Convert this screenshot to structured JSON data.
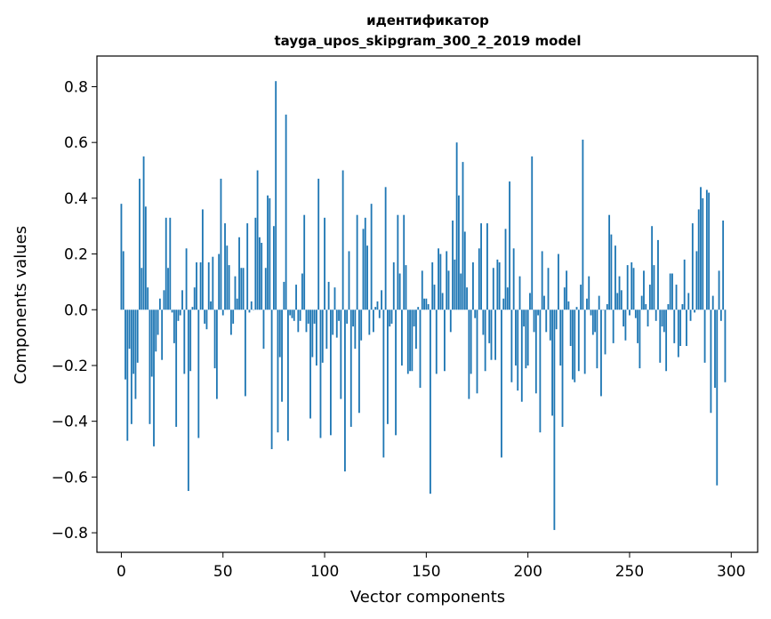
{
  "chart_data": {
    "type": "bar",
    "title": "идентификатор",
    "subtitle": "tayga_upos_skipgram_300_2_2019 model",
    "xlabel": "Vector components",
    "ylabel": "Components values",
    "xlim": [
      -12,
      313
    ],
    "ylim": [
      -0.87,
      0.91
    ],
    "x_ticks": [
      0,
      50,
      100,
      150,
      200,
      250,
      300
    ],
    "x_tick_labels": [
      "0",
      "50",
      "100",
      "150",
      "200",
      "250",
      "300"
    ],
    "y_ticks": [
      -0.8,
      -0.6,
      -0.4,
      -0.2,
      0.0,
      0.2,
      0.4,
      0.6,
      0.8
    ],
    "y_tick_labels": [
      "−0.8",
      "−0.6",
      "−0.4",
      "−0.2",
      "0.0",
      "0.2",
      "0.4",
      "0.6",
      "0.8"
    ],
    "bar_color": "#1f77b4",
    "grid": false,
    "values": [
      0.38,
      0.21,
      -0.25,
      -0.47,
      -0.14,
      -0.41,
      -0.23,
      -0.32,
      -0.19,
      0.47,
      0.15,
      0.55,
      0.37,
      0.08,
      -0.41,
      -0.24,
      -0.49,
      -0.15,
      -0.09,
      0.04,
      -0.18,
      0.07,
      0.33,
      0.15,
      0.33,
      -0.01,
      -0.12,
      -0.42,
      -0.04,
      -0.02,
      0.07,
      -0.23,
      0.22,
      -0.65,
      -0.22,
      0.01,
      0.08,
      0.17,
      -0.46,
      0.17,
      0.36,
      -0.05,
      -0.07,
      0.17,
      0.03,
      0.19,
      -0.21,
      -0.32,
      0.2,
      0.47,
      -0.02,
      0.31,
      0.23,
      0.16,
      -0.09,
      -0.05,
      0.12,
      0.04,
      0.26,
      0.15,
      0.15,
      -0.31,
      0.31,
      -0.01,
      0.03,
      0.0,
      0.33,
      0.5,
      0.26,
      0.24,
      -0.14,
      0.15,
      0.41,
      0.4,
      -0.5,
      0.3,
      0.82,
      -0.44,
      -0.17,
      -0.33,
      0.1,
      0.7,
      -0.47,
      -0.02,
      -0.03,
      -0.04,
      0.09,
      -0.08,
      -0.04,
      0.13,
      0.34,
      -0.08,
      -0.05,
      -0.39,
      -0.17,
      -0.05,
      -0.2,
      0.47,
      -0.46,
      -0.19,
      0.33,
      -0.14,
      0.1,
      -0.45,
      -0.09,
      0.08,
      -0.1,
      -0.04,
      -0.32,
      0.5,
      -0.58,
      -0.05,
      0.21,
      -0.42,
      -0.06,
      -0.14,
      0.34,
      -0.37,
      -0.11,
      0.29,
      0.33,
      0.23,
      -0.09,
      0.38,
      -0.08,
      0.01,
      0.03,
      -0.03,
      0.07,
      -0.53,
      0.44,
      -0.41,
      -0.06,
      -0.05,
      0.17,
      -0.45,
      0.34,
      0.13,
      -0.2,
      0.34,
      0.16,
      -0.23,
      -0.22,
      -0.22,
      -0.06,
      -0.14,
      0.01,
      -0.28,
      0.14,
      0.04,
      0.04,
      0.02,
      -0.66,
      0.17,
      0.09,
      -0.23,
      0.22,
      0.2,
      0.06,
      -0.22,
      0.21,
      0.14,
      -0.08,
      0.32,
      0.18,
      0.6,
      0.41,
      0.13,
      0.53,
      0.28,
      0.08,
      -0.32,
      -0.23,
      0.17,
      -0.03,
      -0.3,
      0.22,
      0.31,
      -0.09,
      -0.22,
      0.31,
      -0.12,
      -0.18,
      0.15,
      -0.18,
      0.18,
      0.17,
      -0.53,
      0.04,
      0.29,
      0.08,
      0.46,
      -0.26,
      0.22,
      -0.2,
      -0.29,
      0.12,
      -0.33,
      -0.06,
      -0.21,
      -0.2,
      0.06,
      0.55,
      -0.08,
      -0.3,
      -0.02,
      -0.44,
      0.21,
      0.05,
      -0.08,
      0.15,
      -0.11,
      -0.38,
      -0.79,
      -0.07,
      0.2,
      -0.2,
      -0.42,
      0.08,
      0.14,
      0.03,
      -0.13,
      -0.25,
      -0.26,
      0.01,
      -0.22,
      0.09,
      0.61,
      -0.23,
      0.04,
      0.12,
      -0.02,
      -0.09,
      -0.08,
      -0.21,
      0.05,
      -0.31,
      0.0,
      -0.16,
      0.02,
      0.34,
      0.27,
      -0.12,
      0.23,
      0.06,
      0.12,
      0.07,
      -0.06,
      -0.11,
      0.16,
      -0.02,
      0.17,
      0.15,
      -0.03,
      -0.12,
      -0.21,
      0.05,
      0.14,
      0.02,
      -0.06,
      0.09,
      0.3,
      0.16,
      -0.04,
      0.25,
      -0.19,
      -0.06,
      -0.08,
      -0.22,
      0.02,
      0.13,
      0.13,
      -0.12,
      0.09,
      -0.17,
      -0.13,
      0.02,
      0.18,
      -0.13,
      0.06,
      -0.04,
      0.31,
      -0.01,
      0.21,
      0.36,
      0.44,
      0.4,
      -0.19,
      0.43,
      0.42,
      -0.37,
      0.05,
      -0.28,
      -0.63,
      0.14,
      -0.04,
      0.32,
      -0.26
    ]
  }
}
